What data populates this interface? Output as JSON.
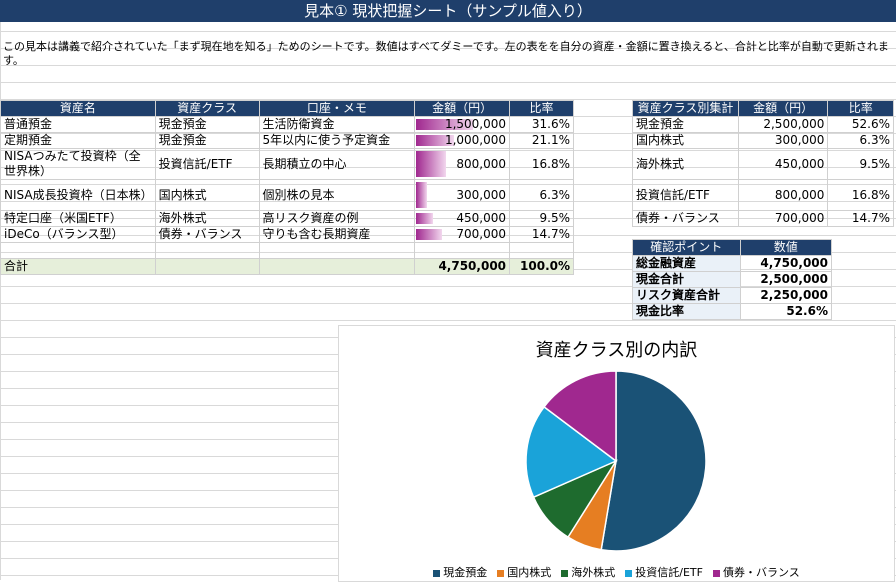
{
  "title": "見本① 現状把握シート（サンプル値入り）",
  "note": "この見本は講義で紹介されていた「まず現在地を知る」ためのシートです。数値はすべてダミーです。左の表をを自分の資産・金額に置き換えると、合計と比率が自動で更新されます。",
  "main_table": {
    "headers": [
      "資産名",
      "資産クラス",
      "口座・メモ",
      "金額（円）",
      "比率"
    ],
    "rows": [
      {
        "name": "普通預金",
        "cls": "現金預金",
        "memo": "生活防衛資金",
        "amount": "1,500,000",
        "ratio": "31.6%",
        "share": 0.316
      },
      {
        "name": "定期預金",
        "cls": "現金預金",
        "memo": "5年以内に使う予定資金",
        "amount": "1,000,000",
        "ratio": "21.1%",
        "share": 0.211
      },
      {
        "name": "NISAつみたて投資枠（全世界株）",
        "cls": "投資信託/ETF",
        "memo": "長期積立の中心",
        "amount": "800,000",
        "ratio": "16.8%",
        "share": 0.168
      },
      {
        "name": "NISA成長投資枠（日本株）",
        "cls": "国内株式",
        "memo": "個別株の見本",
        "amount": "300,000",
        "ratio": "6.3%",
        "share": 0.063
      },
      {
        "name": "特定口座（米国ETF）",
        "cls": "海外株式",
        "memo": "高リスク資産の例",
        "amount": "450,000",
        "ratio": "9.5%",
        "share": 0.095
      },
      {
        "name": "iDeCo（バランス型）",
        "cls": "債券・バランス",
        "memo": "守りも含む長期資産",
        "amount": "700,000",
        "ratio": "14.7%",
        "share": 0.147
      }
    ],
    "total_label": "合計",
    "total_amount": "4,750,000",
    "total_ratio": "100.0%"
  },
  "class_table": {
    "headers": [
      "資産クラス別集計",
      "金額（円）",
      "比率"
    ],
    "rows": [
      {
        "cls": "現金預金",
        "amount": "2,500,000",
        "ratio": "52.6%"
      },
      {
        "cls": "国内株式",
        "amount": "300,000",
        "ratio": "6.3%"
      },
      {
        "cls": "海外株式",
        "amount": "450,000",
        "ratio": "9.5%"
      },
      {
        "cls": "投資信託/ETF",
        "amount": "800,000",
        "ratio": "16.8%"
      },
      {
        "cls": "債券・バランス",
        "amount": "700,000",
        "ratio": "14.7%"
      }
    ]
  },
  "check_table": {
    "headers": [
      "確認ポイント",
      "数値"
    ],
    "rows": [
      {
        "label": "総金融資産",
        "value": "4,750,000"
      },
      {
        "label": "現金合計",
        "value": "2,500,000"
      },
      {
        "label": "リスク資産合計",
        "value": "2,250,000"
      },
      {
        "label": "現金比率",
        "value": "52.6%"
      }
    ]
  },
  "colors": {
    "header_bg": "#1f3f6b",
    "total_bg": "#e6efda",
    "bar": "#a0288f"
  },
  "chart_data": {
    "type": "pie",
    "title": "資産クラス別の内訳",
    "categories": [
      "現金預金",
      "国内株式",
      "海外株式",
      "投資信託/ETF",
      "債券・バランス"
    ],
    "values": [
      2500000,
      300000,
      450000,
      800000,
      700000
    ],
    "colors": [
      "#1a5276",
      "#e67e22",
      "#1e6b2e",
      "#1aa3d9",
      "#a0288f"
    ],
    "legend_position": "bottom"
  }
}
